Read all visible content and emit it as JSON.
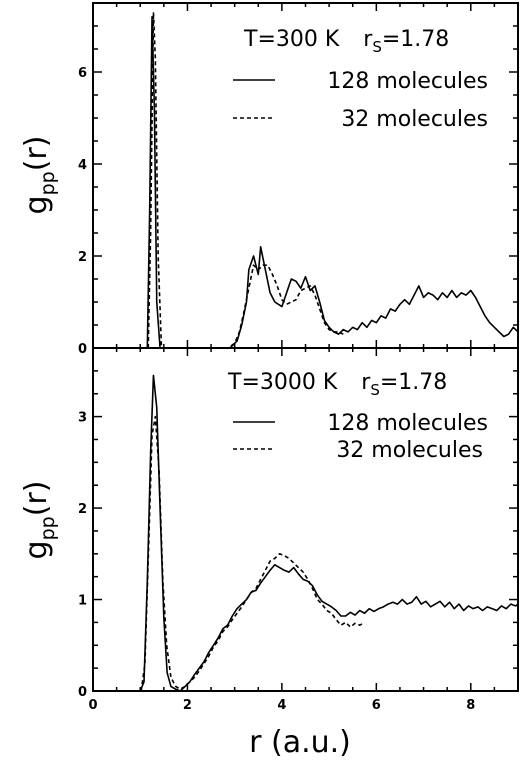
{
  "chart_data": [
    {
      "type": "line",
      "panel": "top",
      "annotation": {
        "T_text": "T=300 K",
        "r_main": "r",
        "r_sub": "S",
        "r_value": "=1.78"
      },
      "ylabel": {
        "main": "g",
        "sub": "pp",
        "suffix": "(r)"
      },
      "xlabel": "",
      "xlim": [
        0,
        9
      ],
      "ylim": [
        0,
        7.5
      ],
      "yticks": [
        0,
        2,
        4,
        6
      ],
      "xticks": [
        0,
        2,
        4,
        6,
        8
      ],
      "x_tick_labels_shown": false,
      "legend": [
        {
          "name": "128 molecules",
          "style": "solid"
        },
        {
          "name": "32 molecules",
          "style": "dashed"
        }
      ],
      "series": [
        {
          "name": "128 molecules",
          "style": "solid",
          "points": [
            [
              1.15,
              0
            ],
            [
              1.2,
              3.0
            ],
            [
              1.25,
              7.2
            ],
            [
              1.3,
              5.2
            ],
            [
              1.35,
              1.0
            ],
            [
              1.42,
              0
            ],
            [
              2.9,
              0
            ],
            [
              3.05,
              0.15
            ],
            [
              3.15,
              0.5
            ],
            [
              3.25,
              1.0
            ],
            [
              3.3,
              1.7
            ],
            [
              3.4,
              2.0
            ],
            [
              3.5,
              1.6
            ],
            [
              3.55,
              2.2
            ],
            [
              3.65,
              1.7
            ],
            [
              3.75,
              1.2
            ],
            [
              3.85,
              1.0
            ],
            [
              4.0,
              0.9
            ],
            [
              4.1,
              1.2
            ],
            [
              4.2,
              1.5
            ],
            [
              4.3,
              1.45
            ],
            [
              4.4,
              1.3
            ],
            [
              4.5,
              1.55
            ],
            [
              4.6,
              1.25
            ],
            [
              4.7,
              1.35
            ],
            [
              4.8,
              1.0
            ],
            [
              4.9,
              0.6
            ],
            [
              5.0,
              0.45
            ],
            [
              5.1,
              0.35
            ],
            [
              5.2,
              0.3
            ],
            [
              5.3,
              0.4
            ],
            [
              5.4,
              0.35
            ],
            [
              5.5,
              0.45
            ],
            [
              5.6,
              0.4
            ],
            [
              5.7,
              0.55
            ],
            [
              5.8,
              0.45
            ],
            [
              5.9,
              0.6
            ],
            [
              6.0,
              0.55
            ],
            [
              6.1,
              0.7
            ],
            [
              6.2,
              0.65
            ],
            [
              6.3,
              0.85
            ],
            [
              6.4,
              0.8
            ],
            [
              6.5,
              0.95
            ],
            [
              6.6,
              1.05
            ],
            [
              6.7,
              0.95
            ],
            [
              6.8,
              1.15
            ],
            [
              6.9,
              1.35
            ],
            [
              7.0,
              1.1
            ],
            [
              7.1,
              1.2
            ],
            [
              7.2,
              1.15
            ],
            [
              7.3,
              1.05
            ],
            [
              7.4,
              1.2
            ],
            [
              7.5,
              1.1
            ],
            [
              7.6,
              1.25
            ],
            [
              7.7,
              1.1
            ],
            [
              7.8,
              1.2
            ],
            [
              7.9,
              1.15
            ],
            [
              8.0,
              1.25
            ],
            [
              8.1,
              1.1
            ],
            [
              8.2,
              0.9
            ],
            [
              8.3,
              0.7
            ],
            [
              8.4,
              0.55
            ],
            [
              8.5,
              0.45
            ],
            [
              8.6,
              0.35
            ],
            [
              8.7,
              0.25
            ],
            [
              8.8,
              0.3
            ],
            [
              8.9,
              0.45
            ],
            [
              9.0,
              0.35
            ]
          ]
        },
        {
          "name": "32 molecules",
          "style": "dashed",
          "points": [
            [
              1.17,
              0
            ],
            [
              1.22,
              2.5
            ],
            [
              1.28,
              7.3
            ],
            [
              1.32,
              6.3
            ],
            [
              1.38,
              2.0
            ],
            [
              1.45,
              0
            ],
            [
              2.85,
              0
            ],
            [
              3.0,
              0.1
            ],
            [
              3.1,
              0.35
            ],
            [
              3.2,
              0.8
            ],
            [
              3.3,
              1.3
            ],
            [
              3.4,
              1.8
            ],
            [
              3.5,
              1.7
            ],
            [
              3.6,
              1.8
            ],
            [
              3.7,
              1.8
            ],
            [
              3.8,
              1.6
            ],
            [
              3.9,
              1.35
            ],
            [
              4.0,
              1.05
            ],
            [
              4.1,
              0.95
            ],
            [
              4.2,
              1.0
            ],
            [
              4.3,
              1.05
            ],
            [
              4.4,
              1.25
            ],
            [
              4.5,
              1.3
            ],
            [
              4.6,
              1.35
            ],
            [
              4.7,
              1.15
            ],
            [
              4.8,
              0.85
            ],
            [
              4.9,
              0.55
            ],
            [
              5.0,
              0.4
            ],
            [
              5.1,
              0.35
            ],
            [
              5.2,
              0.35
            ],
            [
              5.3,
              0.3
            ]
          ]
        }
      ]
    },
    {
      "type": "line",
      "panel": "bottom",
      "annotation": {
        "T_text": "T=3000 K",
        "r_main": "r",
        "r_sub": "S",
        "r_value": "=1.78"
      },
      "ylabel": {
        "main": "g",
        "sub": "pp",
        "suffix": "(r)"
      },
      "xlabel": "r (a.u.)",
      "xlim": [
        0,
        9
      ],
      "ylim": [
        0,
        3.75
      ],
      "yticks": [
        0,
        1,
        2,
        3
      ],
      "xticks": [
        0,
        2,
        4,
        6,
        8
      ],
      "x_tick_labels_shown": true,
      "legend": [
        {
          "name": "128 molecules",
          "style": "solid"
        },
        {
          "name": "32 molecules",
          "style": "dashed"
        }
      ],
      "series": [
        {
          "name": "128 molecules",
          "style": "solid",
          "points": [
            [
              1.0,
              0
            ],
            [
              1.08,
              0.1
            ],
            [
              1.15,
              1.2
            ],
            [
              1.22,
              2.6
            ],
            [
              1.28,
              3.45
            ],
            [
              1.35,
              3.1
            ],
            [
              1.42,
              2.0
            ],
            [
              1.5,
              0.8
            ],
            [
              1.57,
              0.2
            ],
            [
              1.65,
              0.05
            ],
            [
              1.75,
              0.02
            ],
            [
              1.85,
              0
            ],
            [
              1.95,
              0.05
            ],
            [
              2.05,
              0.1
            ],
            [
              2.15,
              0.18
            ],
            [
              2.25,
              0.25
            ],
            [
              2.35,
              0.32
            ],
            [
              2.45,
              0.42
            ],
            [
              2.55,
              0.5
            ],
            [
              2.65,
              0.58
            ],
            [
              2.75,
              0.68
            ],
            [
              2.85,
              0.72
            ],
            [
              2.95,
              0.82
            ],
            [
              3.05,
              0.9
            ],
            [
              3.15,
              0.95
            ],
            [
              3.25,
              1.0
            ],
            [
              3.35,
              1.08
            ],
            [
              3.45,
              1.1
            ],
            [
              3.55,
              1.18
            ],
            [
              3.65,
              1.25
            ],
            [
              3.75,
              1.32
            ],
            [
              3.85,
              1.38
            ],
            [
              3.95,
              1.35
            ],
            [
              4.05,
              1.32
            ],
            [
              4.15,
              1.3
            ],
            [
              4.25,
              1.35
            ],
            [
              4.35,
              1.28
            ],
            [
              4.45,
              1.22
            ],
            [
              4.55,
              1.2
            ],
            [
              4.65,
              1.15
            ],
            [
              4.75,
              1.05
            ],
            [
              4.85,
              0.98
            ],
            [
              4.95,
              0.95
            ],
            [
              5.05,
              0.92
            ],
            [
              5.15,
              0.88
            ],
            [
              5.25,
              0.82
            ],
            [
              5.35,
              0.82
            ],
            [
              5.45,
              0.86
            ],
            [
              5.55,
              0.83
            ],
            [
              5.65,
              0.88
            ],
            [
              5.75,
              0.85
            ],
            [
              5.85,
              0.9
            ],
            [
              5.95,
              0.87
            ],
            [
              6.05,
              0.9
            ],
            [
              6.15,
              0.92
            ],
            [
              6.25,
              0.95
            ],
            [
              6.35,
              0.97
            ],
            [
              6.45,
              0.95
            ],
            [
              6.55,
              1.0
            ],
            [
              6.65,
              0.95
            ],
            [
              6.75,
              0.97
            ],
            [
              6.85,
              1.03
            ],
            [
              6.95,
              0.95
            ],
            [
              7.05,
              0.98
            ],
            [
              7.15,
              0.92
            ],
            [
              7.25,
              0.95
            ],
            [
              7.35,
              0.98
            ],
            [
              7.45,
              0.92
            ],
            [
              7.55,
              0.97
            ],
            [
              7.65,
              0.9
            ],
            [
              7.75,
              0.95
            ],
            [
              7.85,
              0.88
            ],
            [
              7.95,
              0.93
            ],
            [
              8.05,
              0.9
            ],
            [
              8.15,
              0.92
            ],
            [
              8.25,
              0.88
            ],
            [
              8.35,
              0.92
            ],
            [
              8.45,
              0.9
            ],
            [
              8.55,
              0.88
            ],
            [
              8.65,
              0.93
            ],
            [
              8.75,
              0.9
            ],
            [
              8.85,
              0.95
            ],
            [
              8.95,
              0.93
            ],
            [
              9.0,
              0.95
            ]
          ]
        },
        {
          "name": "32 molecules",
          "style": "dashed",
          "points": [
            [
              1.02,
              0
            ],
            [
              1.1,
              0.3
            ],
            [
              1.18,
              1.6
            ],
            [
              1.25,
              2.8
            ],
            [
              1.32,
              3.0
            ],
            [
              1.4,
              2.4
            ],
            [
              1.48,
              1.2
            ],
            [
              1.56,
              0.5
            ],
            [
              1.65,
              0.15
            ],
            [
              1.75,
              0.05
            ],
            [
              1.85,
              0.02
            ],
            [
              1.95,
              0.05
            ],
            [
              2.05,
              0.1
            ],
            [
              2.15,
              0.15
            ],
            [
              2.25,
              0.22
            ],
            [
              2.35,
              0.3
            ],
            [
              2.45,
              0.38
            ],
            [
              2.55,
              0.48
            ],
            [
              2.65,
              0.55
            ],
            [
              2.75,
              0.65
            ],
            [
              2.85,
              0.7
            ],
            [
              2.95,
              0.78
            ],
            [
              3.05,
              0.85
            ],
            [
              3.15,
              0.92
            ],
            [
              3.25,
              1.0
            ],
            [
              3.35,
              1.08
            ],
            [
              3.45,
              1.12
            ],
            [
              3.55,
              1.22
            ],
            [
              3.65,
              1.32
            ],
            [
              3.75,
              1.42
            ],
            [
              3.85,
              1.45
            ],
            [
              3.95,
              1.5
            ],
            [
              4.05,
              1.48
            ],
            [
              4.15,
              1.45
            ],
            [
              4.25,
              1.4
            ],
            [
              4.35,
              1.35
            ],
            [
              4.45,
              1.3
            ],
            [
              4.55,
              1.22
            ],
            [
              4.65,
              1.12
            ],
            [
              4.75,
              1.0
            ],
            [
              4.85,
              0.95
            ],
            [
              4.95,
              0.88
            ],
            [
              5.05,
              0.85
            ],
            [
              5.15,
              0.78
            ],
            [
              5.25,
              0.72
            ],
            [
              5.35,
              0.75
            ],
            [
              5.45,
              0.7
            ],
            [
              5.55,
              0.74
            ],
            [
              5.65,
              0.72
            ],
            [
              5.75,
              0.75
            ]
          ]
        }
      ]
    }
  ]
}
